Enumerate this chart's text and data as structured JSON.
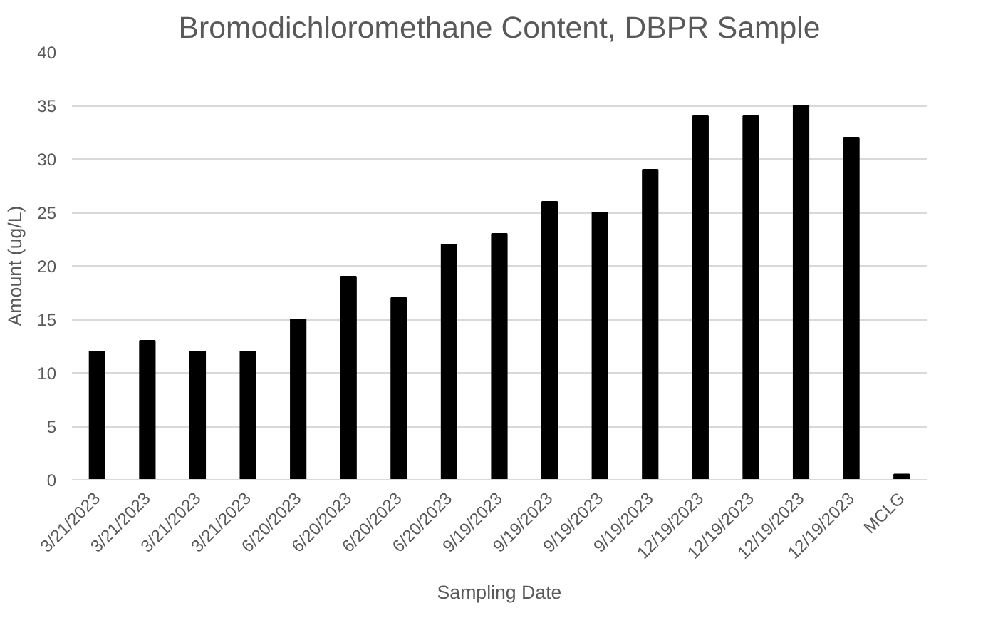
{
  "chart_data": {
    "type": "bar",
    "title": "Bromodichloromethane Content, DBPR Sample",
    "xlabel": "Sampling Date",
    "ylabel": "Amount (ug/L)",
    "categories": [
      "3/21/2023",
      "3/21/2023",
      "3/21/2023",
      "3/21/2023",
      "6/20/2023",
      "6/20/2023",
      "6/20/2023",
      "6/20/2023",
      "9/19/2023",
      "9/19/2023",
      "9/19/2023",
      "9/19/2023",
      "12/19/2023",
      "12/19/2023",
      "12/19/2023",
      "12/19/2023",
      "MCLG"
    ],
    "values": [
      12,
      13,
      12,
      12,
      15,
      19,
      17,
      22,
      23,
      26,
      25,
      29,
      34,
      34,
      35,
      32,
      0.5
    ],
    "color": "#000000",
    "ylim": [
      0,
      40
    ],
    "yticks": [
      0,
      5,
      10,
      15,
      20,
      25,
      30,
      35,
      40
    ],
    "grid": "y"
  }
}
